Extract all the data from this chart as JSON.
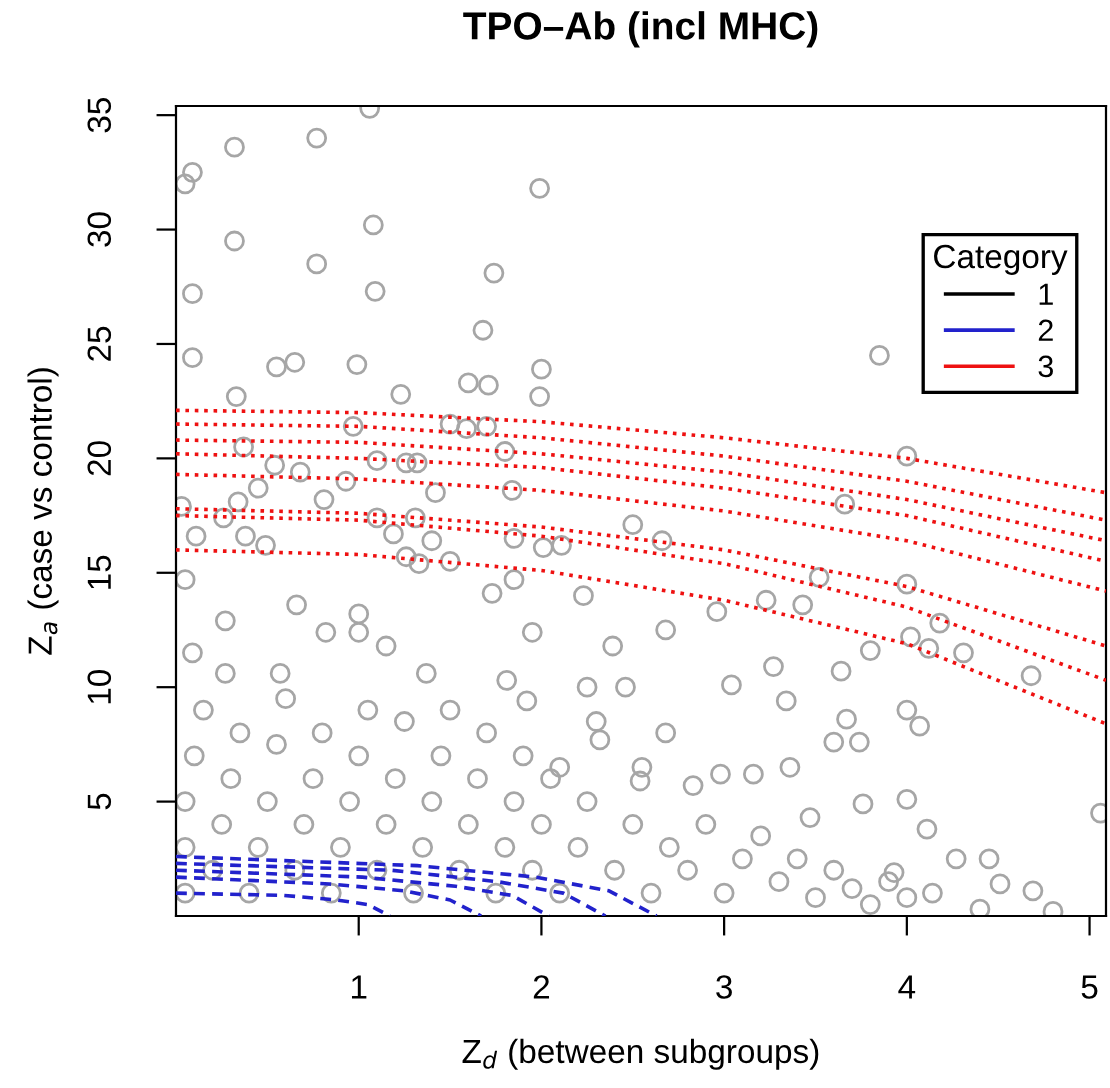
{
  "chart_data": {
    "type": "scatter",
    "title": "TPO–Ab (incl MHC)",
    "xlabel": "Z$_{d}$ (between subgroups)",
    "ylabel": "Z$_{a}$ (case vs control)",
    "legend_title": "Category",
    "xlim": [
      0,
      5.09
    ],
    "ylim": [
      0,
      35.4
    ],
    "xticks": [
      1,
      2,
      3,
      4,
      5
    ],
    "yticks": [
      5,
      10,
      15,
      20,
      25,
      30,
      35
    ],
    "grid": false,
    "legend": "top right",
    "series": [
      {
        "color": "#a6a6a6",
        "marker": "circle",
        "x": [
          1.06,
          0.32,
          0.77,
          0.09,
          0.05,
          1.99,
          1.08,
          0.32,
          0.77,
          1.74,
          0.09,
          1.09,
          1.68,
          0.09,
          0.55,
          0.65,
          0.99,
          1.6,
          1.71,
          2.0,
          3.85,
          1.99,
          0.33,
          1.23,
          0.97,
          1.5,
          1.59,
          1.7,
          0.37,
          1.8,
          4.0,
          1.1,
          1.26,
          1.32,
          0.54,
          0.68,
          0.93,
          0.45,
          1.42,
          1.84,
          0.03,
          0.34,
          0.81,
          3.66,
          0.26,
          1.1,
          1.31,
          2.5,
          0.11,
          0.38,
          1.19,
          1.4,
          1.85,
          2.66,
          2.01,
          2.11,
          0.49,
          1.26,
          1.33,
          1.5,
          0.05,
          1.85,
          3.52,
          4.0,
          2.23,
          3.23,
          3.43,
          2.96,
          4.18,
          4.02,
          4.12,
          4.31,
          3.8,
          3.27,
          3.64,
          4.68,
          3.04,
          0.66,
          1.0,
          1.15,
          0.27,
          0.09,
          0.82,
          0.57,
          1.73,
          1.95,
          1.81,
          2.39,
          2.68,
          2.25,
          0.27,
          1.37,
          1.0,
          3.34,
          3.67,
          4.07,
          4.0,
          3.74,
          3.6,
          3.36,
          3.16,
          2.98,
          3.76,
          4.0,
          3.47,
          4.11,
          4.27,
          4.45,
          4.51,
          4.69,
          4.4,
          4.8,
          5.06,
          3.93,
          4.14,
          2.46,
          1.92,
          2.68,
          2.54,
          2.83,
          2.32,
          2.1,
          0.05,
          0.05,
          0.05,
          0.1,
          0.15,
          0.2,
          0.25,
          0.3,
          0.35,
          0.4,
          0.45,
          0.5,
          0.55,
          0.6,
          0.65,
          0.7,
          0.75,
          0.8,
          0.85,
          0.9,
          0.95,
          1.0,
          1.05,
          1.1,
          1.15,
          1.2,
          1.25,
          1.3,
          1.35,
          1.4,
          1.45,
          1.5,
          1.55,
          1.6,
          1.65,
          1.7,
          1.75,
          1.8,
          1.85,
          1.9,
          1.95,
          2.0,
          2.05,
          2.1,
          2.2,
          2.25,
          2.3,
          2.4,
          2.5,
          2.55,
          2.6,
          2.7,
          2.8,
          2.9,
          3.0,
          3.1,
          3.2,
          3.3,
          3.4,
          3.5,
          3.6,
          3.7,
          3.8,
          3.9,
          4.0
        ],
        "values": [
          35.3,
          33.6,
          34.0,
          32.5,
          32.0,
          31.8,
          30.2,
          29.5,
          28.5,
          28.1,
          27.2,
          27.3,
          25.6,
          24.4,
          24.0,
          24.2,
          24.1,
          23.3,
          23.2,
          23.9,
          24.5,
          22.7,
          22.7,
          22.8,
          21.4,
          21.5,
          21.3,
          21.4,
          20.5,
          20.3,
          20.1,
          19.9,
          19.8,
          19.8,
          19.7,
          19.4,
          19.0,
          18.7,
          18.5,
          18.6,
          17.9,
          18.1,
          18.2,
          18.0,
          17.4,
          17.4,
          17.4,
          17.1,
          16.6,
          16.6,
          16.7,
          16.4,
          16.5,
          16.4,
          16.1,
          16.2,
          16.2,
          15.7,
          15.4,
          15.5,
          14.7,
          14.7,
          14.8,
          14.5,
          14.0,
          13.8,
          13.6,
          13.3,
          12.8,
          12.2,
          11.7,
          11.5,
          11.6,
          10.9,
          10.7,
          10.5,
          10.1,
          13.6,
          13.2,
          11.8,
          12.9,
          11.5,
          12.4,
          10.6,
          14.1,
          12.4,
          10.3,
          11.8,
          12.5,
          10.0,
          10.6,
          10.6,
          12.4,
          9.4,
          8.6,
          8.3,
          9.0,
          7.6,
          7.6,
          6.5,
          6.2,
          6.2,
          4.9,
          5.1,
          4.3,
          3.8,
          2.5,
          2.5,
          1.4,
          1.1,
          0.3,
          0.2,
          4.5,
          1.9,
          1.0,
          10.0,
          9.4,
          8.0,
          5.9,
          5.7,
          7.7,
          6.5,
          1.0,
          3.0,
          5.0,
          7.0,
          9.0,
          2.0,
          4.0,
          6.0,
          8.0,
          1.0,
          3.0,
          5.0,
          7.5,
          9.5,
          2.0,
          4.0,
          6.0,
          8.0,
          1.0,
          3.0,
          5.0,
          7.0,
          9.0,
          2.0,
          4.0,
          6.0,
          8.5,
          1.0,
          3.0,
          5.0,
          7.0,
          9.0,
          2.0,
          4.0,
          6.0,
          8.0,
          1.0,
          3.0,
          5.0,
          7.0,
          2.0,
          4.0,
          6.0,
          1.0,
          3.0,
          5.0,
          8.5,
          2.0,
          4.0,
          6.5,
          1.0,
          3.0,
          2.0,
          4.0,
          1.0,
          2.5,
          3.5,
          1.5,
          2.5,
          0.8,
          2.0,
          1.2,
          0.5,
          1.5,
          0.8
        ]
      },
      {
        "name": "1",
        "type": "line",
        "color": "#000000",
        "line_style": "solid"
      },
      {
        "name": "2",
        "type": "line",
        "color": "#2222cc",
        "line_style": "dashed",
        "x": [
          0,
          1.32,
          1.97,
          2.37,
          2.63
        ],
        "values": [
          2.6,
          2.2,
          1.7,
          1.1,
          0
        ]
      },
      {
        "type": "line",
        "color": "#2222cc",
        "line_style": "dashed",
        "x": [
          0,
          1.18,
          1.76,
          2.12,
          2.35
        ],
        "values": [
          2.3,
          2.0,
          1.5,
          1.0,
          0
        ]
      },
      {
        "type": "line",
        "color": "#2222cc",
        "line_style": "dashed",
        "x": [
          0,
          1.02,
          1.53,
          1.84,
          2.04
        ],
        "values": [
          2.0,
          1.7,
          1.3,
          0.9,
          0
        ]
      },
      {
        "type": "line",
        "color": "#2222cc",
        "line_style": "dashed",
        "x": [
          0,
          0.84,
          1.25,
          1.5,
          1.67
        ],
        "values": [
          1.7,
          1.4,
          1.1,
          0.7,
          0
        ]
      },
      {
        "type": "line",
        "color": "#2222cc",
        "line_style": "dashed",
        "x": [
          0,
          0.59,
          0.88,
          1.05,
          1.17
        ],
        "values": [
          1.0,
          0.9,
          0.7,
          0.5,
          0
        ]
      },
      {
        "name": "3",
        "type": "line",
        "color": "#ee1111",
        "line_style": "dotted",
        "x": [
          0,
          1,
          2,
          3,
          4,
          5.09
        ],
        "values": [
          22.1,
          22.0,
          21.6,
          20.9,
          20.0,
          18.5
        ]
      },
      {
        "type": "line",
        "color": "#ee1111",
        "line_style": "dotted",
        "x": [
          0,
          1,
          2,
          3,
          4,
          5.09
        ],
        "values": [
          21.5,
          21.4,
          20.9,
          20.1,
          19.0,
          17.3
        ]
      },
      {
        "type": "line",
        "color": "#ee1111",
        "line_style": "dotted",
        "x": [
          0,
          1,
          2,
          3,
          4,
          5.09
        ],
        "values": [
          20.8,
          20.7,
          20.2,
          19.4,
          18.2,
          16.4
        ]
      },
      {
        "type": "line",
        "color": "#ee1111",
        "line_style": "dotted",
        "x": [
          0,
          1,
          2,
          3,
          4,
          5.09
        ],
        "values": [
          20.2,
          20.0,
          19.6,
          18.7,
          17.5,
          15.5
        ]
      },
      {
        "type": "line",
        "color": "#ee1111",
        "line_style": "dotted",
        "x": [
          0,
          1,
          2,
          3,
          4,
          5.09
        ],
        "values": [
          19.3,
          19.1,
          18.6,
          17.7,
          16.4,
          14.2
        ]
      },
      {
        "type": "line",
        "color": "#ee1111",
        "line_style": "dotted",
        "x": [
          0,
          1,
          2,
          3,
          4,
          5.09
        ],
        "values": [
          17.8,
          17.6,
          17.0,
          16.0,
          14.4,
          11.8
        ]
      },
      {
        "type": "line",
        "color": "#ee1111",
        "line_style": "dotted",
        "x": [
          0,
          1,
          2,
          3,
          4,
          5.09
        ],
        "values": [
          17.5,
          17.3,
          16.6,
          15.4,
          13.5,
          10.3
        ]
      },
      {
        "type": "line",
        "color": "#ee1111",
        "line_style": "dotted",
        "x": [
          0,
          1,
          2,
          3,
          4,
          5.09
        ],
        "values": [
          16.0,
          15.8,
          15.1,
          13.8,
          11.9,
          8.4
        ]
      }
    ]
  }
}
